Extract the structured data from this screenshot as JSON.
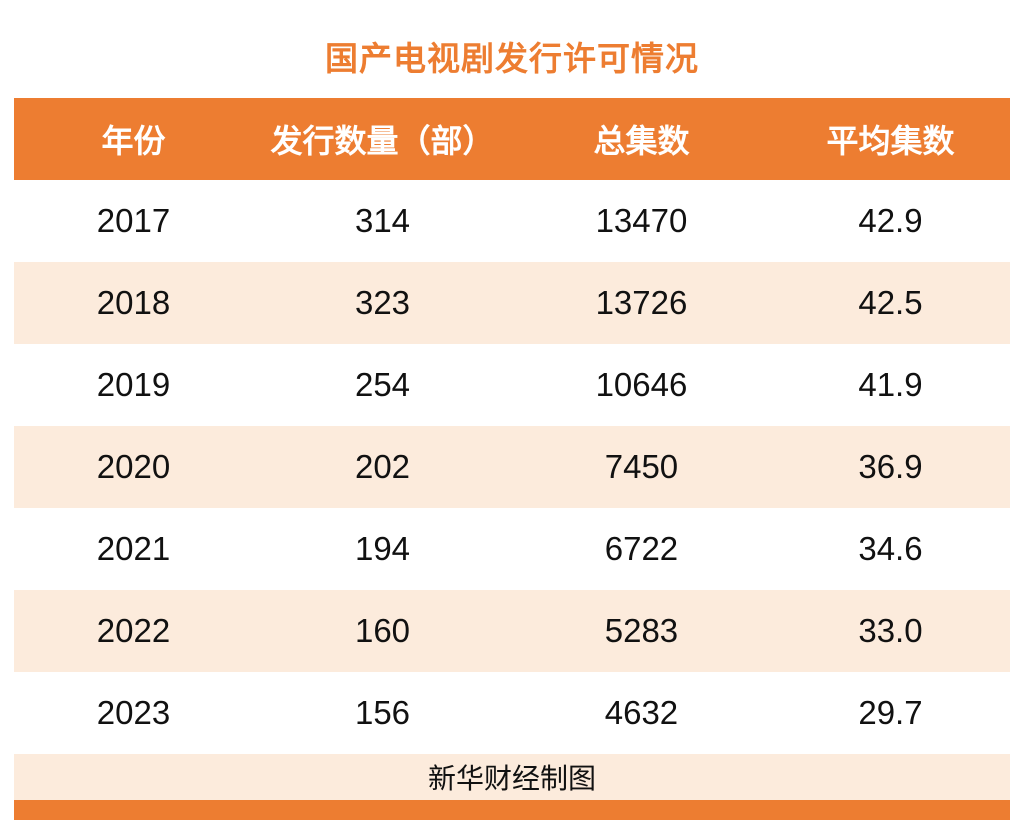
{
  "accent_color": "#ED7D31",
  "row_alt_color": "#FCEBDC",
  "table": {
    "title": "国产电视剧发行许可情况",
    "source": "新华财经制图"
  },
  "chart_data": {
    "type": "table",
    "title": "国产电视剧发行许可情况",
    "columns": [
      "年份",
      "发行数量（部）",
      "总集数",
      "平均集数"
    ],
    "rows": [
      [
        "2017",
        "314",
        "13470",
        "42.9"
      ],
      [
        "2018",
        "323",
        "13726",
        "42.5"
      ],
      [
        "2019",
        "254",
        "10646",
        "41.9"
      ],
      [
        "2020",
        "202",
        "7450",
        "36.9"
      ],
      [
        "2021",
        "194",
        "6722",
        "34.6"
      ],
      [
        "2022",
        "160",
        "5283",
        "33.0"
      ],
      [
        "2023",
        "156",
        "4632",
        "29.7"
      ]
    ],
    "source": "新华财经制图",
    "layout": {
      "header_background": "#ED7D31",
      "alternating_rows": true,
      "grid": false
    }
  }
}
